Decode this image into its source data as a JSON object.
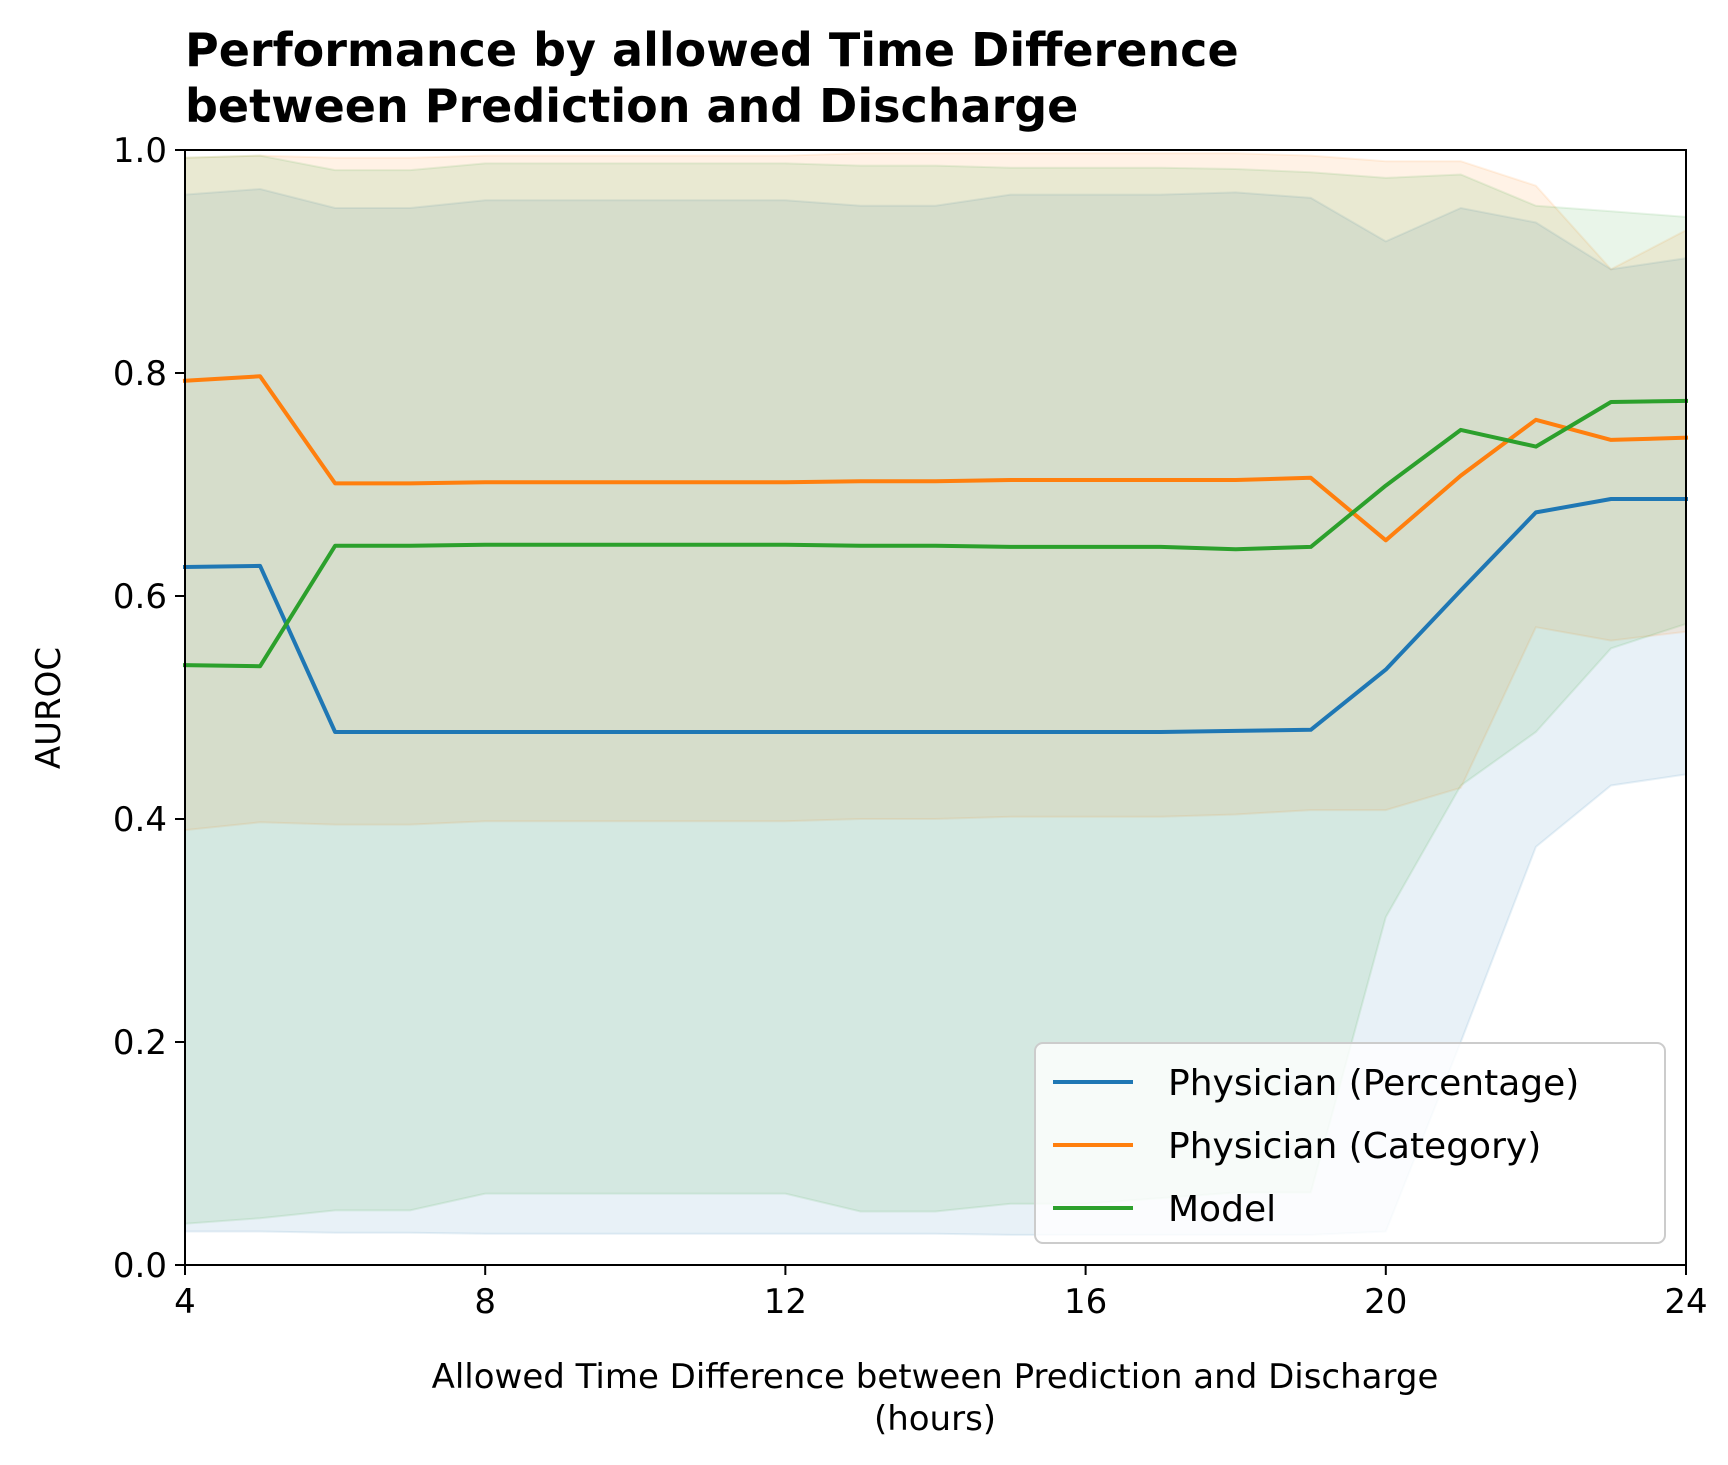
{
  "chart_data": {
    "type": "line",
    "title_line1": "Performance by allowed Time Difference",
    "title_line2": "between Prediction and Discharge",
    "xlabel_line1": "Allowed Time Difference between Prediction and Discharge",
    "xlabel_line2": "(hours)",
    "ylabel": "AUROC",
    "xlim": [
      4,
      24
    ],
    "ylim": [
      0.0,
      1.0
    ],
    "xticks": [
      4,
      8,
      12,
      16,
      20,
      24
    ],
    "xtick_labels": [
      "4",
      "8",
      "12",
      "16",
      "20",
      "24"
    ],
    "yticks": [
      0.0,
      0.2,
      0.4,
      0.6,
      0.8,
      1.0
    ],
    "ytick_labels": [
      "0.0",
      "0.2",
      "0.4",
      "0.6",
      "0.8",
      "1.0"
    ],
    "legend_position": "lower-right",
    "x": [
      4,
      5,
      6,
      7,
      8,
      9,
      10,
      11,
      12,
      13,
      14,
      15,
      16,
      17,
      18,
      19,
      20,
      21,
      22,
      23,
      24
    ],
    "series": [
      {
        "name": "Physician (Percentage)",
        "color": "#1f77b4",
        "values": [
          0.626,
          0.627,
          0.478,
          0.478,
          0.478,
          0.478,
          0.478,
          0.478,
          0.478,
          0.478,
          0.478,
          0.478,
          0.478,
          0.478,
          0.479,
          0.48,
          0.534,
          0.605,
          0.675,
          0.687,
          0.687
        ],
        "lower": [
          0.03,
          0.03,
          0.029,
          0.029,
          0.028,
          0.028,
          0.028,
          0.028,
          0.028,
          0.028,
          0.028,
          0.027,
          0.027,
          0.027,
          0.027,
          0.027,
          0.03,
          0.2,
          0.375,
          0.43,
          0.44
        ],
        "upper": [
          0.96,
          0.965,
          0.948,
          0.948,
          0.955,
          0.955,
          0.955,
          0.955,
          0.955,
          0.95,
          0.95,
          0.96,
          0.96,
          0.96,
          0.962,
          0.957,
          0.918,
          0.948,
          0.935,
          0.893,
          0.903
        ]
      },
      {
        "name": "Physician (Category)",
        "color": "#ff7f0e",
        "values": [
          0.793,
          0.797,
          0.701,
          0.701,
          0.702,
          0.702,
          0.702,
          0.702,
          0.702,
          0.703,
          0.703,
          0.704,
          0.704,
          0.704,
          0.704,
          0.706,
          0.65,
          0.708,
          0.758,
          0.74,
          0.742
        ],
        "lower": [
          0.39,
          0.397,
          0.395,
          0.395,
          0.398,
          0.398,
          0.398,
          0.398,
          0.398,
          0.4,
          0.4,
          0.402,
          0.402,
          0.402,
          0.404,
          0.408,
          0.408,
          0.428,
          0.572,
          0.56,
          0.568
        ],
        "upper": [
          0.993,
          0.995,
          0.993,
          0.993,
          0.995,
          0.995,
          0.995,
          0.995,
          0.995,
          0.997,
          0.997,
          0.997,
          0.997,
          0.997,
          0.997,
          0.995,
          0.99,
          0.99,
          0.968,
          0.893,
          0.928
        ]
      },
      {
        "name": "Model",
        "color": "#2ca02c",
        "values": [
          0.538,
          0.537,
          0.645,
          0.645,
          0.646,
          0.646,
          0.646,
          0.646,
          0.646,
          0.645,
          0.645,
          0.644,
          0.644,
          0.644,
          0.642,
          0.644,
          0.699,
          0.749,
          0.734,
          0.774,
          0.775
        ],
        "lower": [
          0.037,
          0.042,
          0.049,
          0.049,
          0.064,
          0.064,
          0.064,
          0.064,
          0.064,
          0.048,
          0.048,
          0.055,
          0.055,
          0.06,
          0.065,
          0.065,
          0.312,
          0.43,
          0.478,
          0.553,
          0.575
        ],
        "upper": [
          0.993,
          0.995,
          0.982,
          0.982,
          0.988,
          0.988,
          0.988,
          0.988,
          0.988,
          0.986,
          0.986,
          0.984,
          0.984,
          0.984,
          0.983,
          0.98,
          0.975,
          0.978,
          0.95,
          0.945,
          0.94
        ]
      }
    ]
  }
}
